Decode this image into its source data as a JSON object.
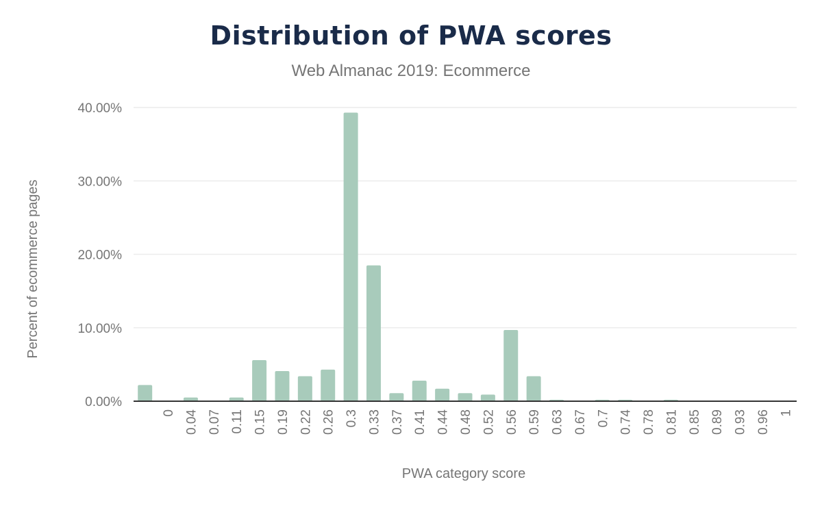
{
  "chart_data": {
    "type": "bar",
    "title": "Distribution of PWA scores",
    "subtitle": "Web Almanac 2019: Ecommerce",
    "xlabel": "PWA category score",
    "ylabel": "Percent of ecommerce pages",
    "ylim": [
      0,
      40
    ],
    "yticks": [
      "0.00%",
      "10.00%",
      "20.00%",
      "30.00%",
      "40.00%"
    ],
    "grid": true,
    "bar_color": "#a8cbbb",
    "categories": [
      "",
      "0",
      "0.04",
      "0.07",
      "0.11",
      "0.15",
      "0.19",
      "0.22",
      "0.26",
      "0.3",
      "0.33",
      "0.37",
      "0.41",
      "0.44",
      "0.48",
      "0.52",
      "0.56",
      "0.59",
      "0.63",
      "0.67",
      "0.7",
      "0.74",
      "0.78",
      "0.81",
      "0.85",
      "0.89",
      "0.93",
      "0.96",
      "1"
    ],
    "values": [
      2.2,
      0,
      0.5,
      0,
      0.5,
      5.6,
      4.1,
      3.4,
      4.3,
      39.3,
      18.5,
      1.1,
      2.8,
      1.7,
      1.1,
      0.9,
      9.7,
      3.4,
      0.2,
      0,
      0.2,
      0.2,
      0,
      0.2,
      0,
      0,
      0,
      0,
      0
    ]
  }
}
